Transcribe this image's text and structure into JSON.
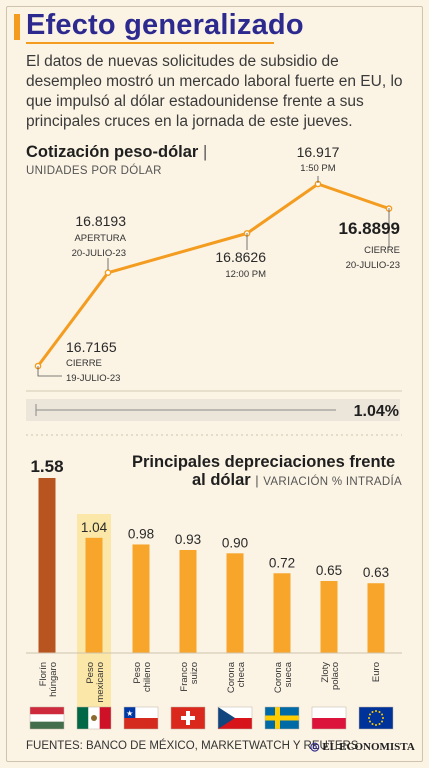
{
  "header": {
    "title": "Efecto generalizado",
    "intro": "El datos de nuevas solicitudes de subsidio de desempleo mostró un mercado laboral fuerte en EU, lo que impulsó al dólar estadounidense frente a sus principales cruces en la jornada de este jueves."
  },
  "line_section": {
    "title": "Cotización peso-dólar",
    "separator": "|",
    "subtitle": "UNIDADES POR DÓLAR",
    "change_label": "1.04%",
    "change_value": 1.04
  },
  "bar_section": {
    "title_line1": "Principales depreciaciones frente",
    "title_line2": "al dólar",
    "separator": "|",
    "subtitle": "VARIACIÓN % INTRADÍA"
  },
  "footer": {
    "sources": "FUENTES: BANCO DE MÉXICO, MARKETWATCH Y REUTERS",
    "brand": "EL ECONOMISTA"
  },
  "colors": {
    "title": "#2d2a8f",
    "accent": "#f39c1f",
    "bar": "#f7a62b",
    "bar_top": "#b8541f",
    "highlight": "#fbe7a8"
  },
  "chart_data": [
    {
      "type": "line",
      "points": [
        {
          "value": 16.7165,
          "label": "16.7165",
          "note1": "CIERRE",
          "note2": "19-JULIO-23"
        },
        {
          "value": 16.8193,
          "label": "16.8193",
          "note1": "APERTURA",
          "note2": "20-JULIO-23"
        },
        {
          "value": 16.8626,
          "label": "16.8626",
          "note1": "12:00 PM",
          "note2": ""
        },
        {
          "value": 16.917,
          "label": "16.917",
          "note1": "1:50 PM",
          "note2": ""
        },
        {
          "value": 16.8899,
          "label": "16.8899",
          "note1": "CIERRE",
          "note2": "20-JULIO-23"
        }
      ]
    },
    {
      "type": "bar",
      "categories": [
        {
          "line1": "Florín",
          "line2": "húngaro",
          "flag": "hungary-flag-icon"
        },
        {
          "line1": "Peso",
          "line2": "mexicano",
          "flag": "mexico-flag-icon"
        },
        {
          "line1": "Peso",
          "line2": "chileno",
          "flag": "chile-flag-icon"
        },
        {
          "line1": "Franco",
          "line2": "suizo",
          "flag": "switzerland-flag-icon"
        },
        {
          "line1": "Corona",
          "line2": "checa",
          "flag": "czech-flag-icon"
        },
        {
          "line1": "Corona",
          "line2": "sueca",
          "flag": "sweden-flag-icon"
        },
        {
          "line1": "Zloty",
          "line2": "polaco",
          "flag": "poland-flag-icon"
        },
        {
          "line1": "Euro",
          "line2": "",
          "flag": "eu-flag-icon"
        }
      ],
      "values": [
        1.58,
        1.04,
        0.98,
        0.93,
        0.9,
        0.72,
        0.65,
        0.63
      ],
      "labels": [
        "1.58",
        "1.04",
        "0.98",
        "0.93",
        "0.90",
        "0.72",
        "0.65",
        "0.63"
      ],
      "highlight_index": 1
    }
  ]
}
